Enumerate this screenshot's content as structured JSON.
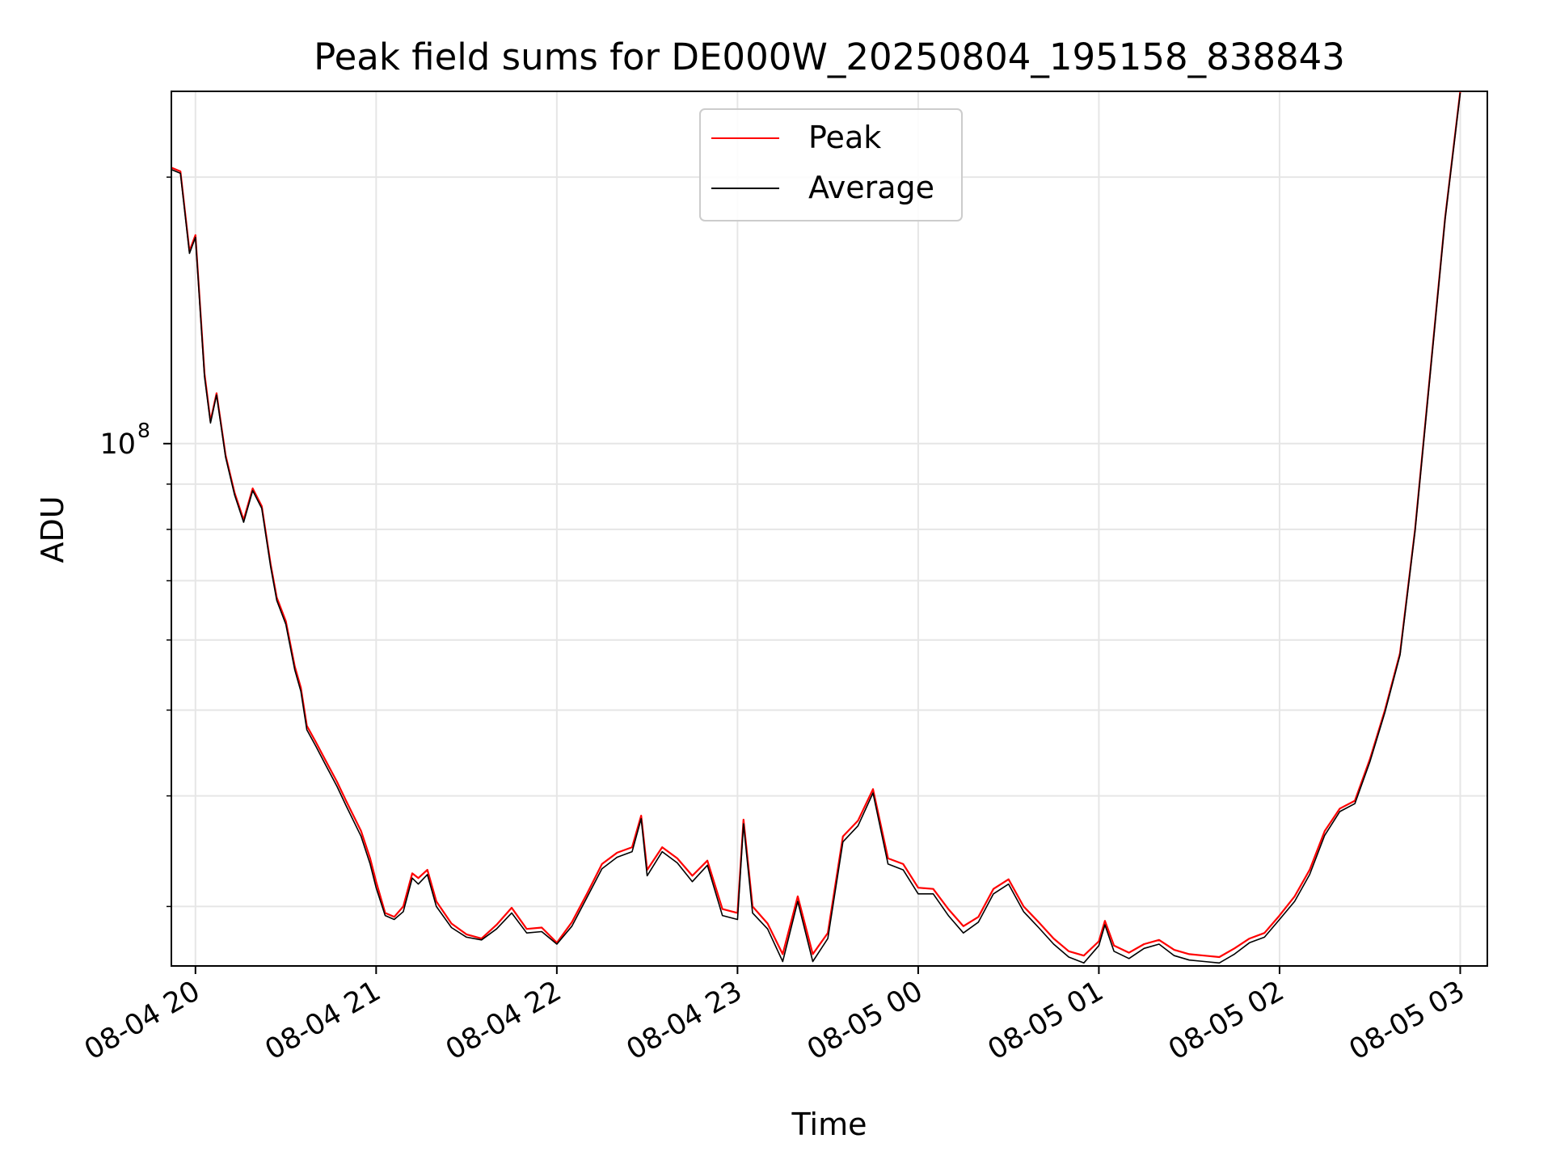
{
  "chart_data": {
    "type": "line",
    "title": "Peak field sums for DE000W_20250804_195158_838843",
    "xlabel": "Time",
    "ylabel": "ADU",
    "y_scale": "log",
    "grid": "on (major and minor)",
    "legend_position": "upper center",
    "x_tick_labels": [
      "08-04 20",
      "08-04 21",
      "08-04 22",
      "08-04 23",
      "08-05 00",
      "08-05 01",
      "08-05 02",
      "08-05 03"
    ],
    "x_tick_dates": [
      "2025-08-04T20:00",
      "2025-08-04T21:00",
      "2025-08-04T22:00",
      "2025-08-04T23:00",
      "2025-08-05T00:00",
      "2025-08-05T01:00",
      "2025-08-05T02:00",
      "2025-08-05T03:00"
    ],
    "xlim": [
      "2025-08-04T19:52",
      "2025-08-05T03:09"
    ],
    "y_major_ticks": [
      {
        "value": 100000000,
        "base": "10",
        "exponent": "8"
      }
    ],
    "y_minor_ticks": [
      30000000,
      40000000,
      50000000,
      60000000,
      70000000,
      80000000,
      90000000,
      200000000
    ],
    "ylim": [
      25700000,
      250000000
    ],
    "series": [
      {
        "name": "Peak",
        "color": "#ff0000",
        "points": [
          [
            "2025-08-04T19:52",
            205000000
          ],
          [
            "2025-08-04T19:55",
            203000000
          ],
          [
            "2025-08-04T19:58",
            165000000
          ],
          [
            "2025-08-04T20:00",
            172000000
          ],
          [
            "2025-08-04T20:03",
            120000000
          ],
          [
            "2025-08-04T20:05",
            106000000
          ],
          [
            "2025-08-04T20:07",
            114000000
          ],
          [
            "2025-08-04T20:10",
            97000000
          ],
          [
            "2025-08-04T20:13",
            88000000
          ],
          [
            "2025-08-04T20:16",
            82000000
          ],
          [
            "2025-08-04T20:19",
            89000000
          ],
          [
            "2025-08-04T20:22",
            85000000
          ],
          [
            "2025-08-04T20:25",
            73000000
          ],
          [
            "2025-08-04T20:27",
            67000000
          ],
          [
            "2025-08-04T20:30",
            63000000
          ],
          [
            "2025-08-04T20:33",
            56000000
          ],
          [
            "2025-08-04T20:35",
            53000000
          ],
          [
            "2025-08-04T20:37",
            48000000
          ],
          [
            "2025-08-04T20:40",
            46000000
          ],
          [
            "2025-08-04T20:43",
            44000000
          ],
          [
            "2025-08-04T20:47",
            41500000
          ],
          [
            "2025-08-04T20:50",
            39500000
          ],
          [
            "2025-08-04T20:55",
            36500000
          ],
          [
            "2025-08-04T20:58",
            34000000
          ],
          [
            "2025-08-04T21:00",
            32000000
          ],
          [
            "2025-08-04T21:03",
            29500000
          ],
          [
            "2025-08-04T21:06",
            29200000
          ],
          [
            "2025-08-04T21:09",
            30000000
          ],
          [
            "2025-08-04T21:12",
            32700000
          ],
          [
            "2025-08-04T21:14",
            32300000
          ],
          [
            "2025-08-04T21:17",
            33000000
          ],
          [
            "2025-08-04T21:20",
            30400000
          ],
          [
            "2025-08-04T21:25",
            28700000
          ],
          [
            "2025-08-04T21:30",
            27900000
          ],
          [
            "2025-08-04T21:35",
            27600000
          ],
          [
            "2025-08-04T21:40",
            28600000
          ],
          [
            "2025-08-04T21:45",
            29900000
          ],
          [
            "2025-08-04T21:50",
            28300000
          ],
          [
            "2025-08-04T21:55",
            28400000
          ],
          [
            "2025-08-04T22:00",
            27300000
          ],
          [
            "2025-08-04T22:05",
            28800000
          ],
          [
            "2025-08-04T22:10",
            31000000
          ],
          [
            "2025-08-04T22:15",
            33500000
          ],
          [
            "2025-08-04T22:20",
            34500000
          ],
          [
            "2025-08-04T22:25",
            35000000
          ],
          [
            "2025-08-04T22:28",
            38000000
          ],
          [
            "2025-08-04T22:30",
            33000000
          ],
          [
            "2025-08-04T22:35",
            35000000
          ],
          [
            "2025-08-04T22:40",
            34000000
          ],
          [
            "2025-08-04T22:45",
            32500000
          ],
          [
            "2025-08-04T22:50",
            33800000
          ],
          [
            "2025-08-04T22:55",
            29800000
          ],
          [
            "2025-08-04T23:00",
            29500000
          ],
          [
            "2025-08-04T23:02",
            37600000
          ],
          [
            "2025-08-04T23:05",
            30000000
          ],
          [
            "2025-08-04T23:10",
            28700000
          ],
          [
            "2025-08-04T23:15",
            26500000
          ],
          [
            "2025-08-04T23:20",
            30800000
          ],
          [
            "2025-08-04T23:25",
            26500000
          ],
          [
            "2025-08-04T23:30",
            28000000
          ],
          [
            "2025-08-04T23:35",
            36000000
          ],
          [
            "2025-08-04T23:40",
            37500000
          ],
          [
            "2025-08-04T23:45",
            40700000
          ],
          [
            "2025-08-04T23:50",
            34000000
          ],
          [
            "2025-08-04T23:55",
            33500000
          ],
          [
            "2025-08-05T00:00",
            31500000
          ],
          [
            "2025-08-05T00:05",
            31400000
          ],
          [
            "2025-08-05T00:10",
            29800000
          ],
          [
            "2025-08-05T00:15",
            28500000
          ],
          [
            "2025-08-05T00:20",
            29200000
          ],
          [
            "2025-08-05T00:25",
            31400000
          ],
          [
            "2025-08-05T00:30",
            32200000
          ],
          [
            "2025-08-05T00:35",
            30000000
          ],
          [
            "2025-08-05T00:40",
            28800000
          ],
          [
            "2025-08-05T00:45",
            27600000
          ],
          [
            "2025-08-05T00:50",
            26700000
          ],
          [
            "2025-08-05T00:55",
            26400000
          ],
          [
            "2025-08-05T01:00",
            27400000
          ],
          [
            "2025-08-05T01:02",
            28900000
          ],
          [
            "2025-08-05T01:05",
            27100000
          ],
          [
            "2025-08-05T01:10",
            26600000
          ],
          [
            "2025-08-05T01:15",
            27200000
          ],
          [
            "2025-08-05T01:20",
            27500000
          ],
          [
            "2025-08-05T01:25",
            26800000
          ],
          [
            "2025-08-05T01:30",
            26500000
          ],
          [
            "2025-08-05T01:35",
            26400000
          ],
          [
            "2025-08-05T01:40",
            26300000
          ],
          [
            "2025-08-05T01:45",
            26900000
          ],
          [
            "2025-08-05T01:50",
            27600000
          ],
          [
            "2025-08-05T01:55",
            28000000
          ],
          [
            "2025-08-05T02:00",
            29300000
          ],
          [
            "2025-08-05T02:05",
            30800000
          ],
          [
            "2025-08-05T02:10",
            33000000
          ],
          [
            "2025-08-05T02:15",
            36500000
          ],
          [
            "2025-08-05T02:20",
            38700000
          ],
          [
            "2025-08-05T02:25",
            39500000
          ],
          [
            "2025-08-05T02:30",
            44000000
          ],
          [
            "2025-08-05T02:35",
            50000000
          ],
          [
            "2025-08-05T02:40",
            58000000
          ],
          [
            "2025-08-05T02:45",
            80000000
          ],
          [
            "2025-08-05T02:50",
            120000000
          ],
          [
            "2025-08-05T02:55",
            180000000
          ],
          [
            "2025-08-05T03:00",
            250000000
          ]
        ]
      },
      {
        "name": "Average",
        "color": "#000000",
        "points": [
          [
            "2025-08-04T19:52",
            204000000
          ],
          [
            "2025-08-04T19:55",
            202000000
          ],
          [
            "2025-08-04T19:58",
            164000000
          ],
          [
            "2025-08-04T20:00",
            171000000
          ],
          [
            "2025-08-04T20:03",
            119000000
          ],
          [
            "2025-08-04T20:05",
            105500000
          ],
          [
            "2025-08-04T20:07",
            113500000
          ],
          [
            "2025-08-04T20:10",
            96500000
          ],
          [
            "2025-08-04T20:13",
            87500000
          ],
          [
            "2025-08-04T20:16",
            81500000
          ],
          [
            "2025-08-04T20:19",
            88500000
          ],
          [
            "2025-08-04T20:22",
            84500000
          ],
          [
            "2025-08-04T20:25",
            72500000
          ],
          [
            "2025-08-04T20:27",
            66500000
          ],
          [
            "2025-08-04T20:30",
            62500000
          ],
          [
            "2025-08-04T20:33",
            55500000
          ],
          [
            "2025-08-04T20:35",
            52500000
          ],
          [
            "2025-08-04T20:37",
            47500000
          ],
          [
            "2025-08-04T20:40",
            45500000
          ],
          [
            "2025-08-04T20:43",
            43500000
          ],
          [
            "2025-08-04T20:47",
            41000000
          ],
          [
            "2025-08-04T20:50",
            39000000
          ],
          [
            "2025-08-04T20:55",
            36000000
          ],
          [
            "2025-08-04T20:58",
            33500000
          ],
          [
            "2025-08-04T21:00",
            31500000
          ],
          [
            "2025-08-04T21:03",
            29300000
          ],
          [
            "2025-08-04T21:06",
            29000000
          ],
          [
            "2025-08-04T21:09",
            29600000
          ],
          [
            "2025-08-04T21:12",
            32300000
          ],
          [
            "2025-08-04T21:14",
            31800000
          ],
          [
            "2025-08-04T21:17",
            32600000
          ],
          [
            "2025-08-04T21:20",
            30000000
          ],
          [
            "2025-08-04T21:25",
            28400000
          ],
          [
            "2025-08-04T21:30",
            27700000
          ],
          [
            "2025-08-04T21:35",
            27500000
          ],
          [
            "2025-08-04T21:40",
            28300000
          ],
          [
            "2025-08-04T21:45",
            29500000
          ],
          [
            "2025-08-04T21:50",
            28000000
          ],
          [
            "2025-08-04T21:55",
            28100000
          ],
          [
            "2025-08-04T22:00",
            27200000
          ],
          [
            "2025-08-04T22:05",
            28500000
          ],
          [
            "2025-08-04T22:10",
            30700000
          ],
          [
            "2025-08-04T22:15",
            33100000
          ],
          [
            "2025-08-04T22:20",
            34100000
          ],
          [
            "2025-08-04T22:25",
            34600000
          ],
          [
            "2025-08-04T22:28",
            37700000
          ],
          [
            "2025-08-04T22:30",
            32500000
          ],
          [
            "2025-08-04T22:35",
            34600000
          ],
          [
            "2025-08-04T22:40",
            33600000
          ],
          [
            "2025-08-04T22:45",
            32000000
          ],
          [
            "2025-08-04T22:50",
            33400000
          ],
          [
            "2025-08-04T22:55",
            29300000
          ],
          [
            "2025-08-04T23:00",
            29000000
          ],
          [
            "2025-08-04T23:02",
            37200000
          ],
          [
            "2025-08-04T23:05",
            29500000
          ],
          [
            "2025-08-04T23:10",
            28300000
          ],
          [
            "2025-08-04T23:15",
            26000000
          ],
          [
            "2025-08-04T23:20",
            30400000
          ],
          [
            "2025-08-04T23:25",
            26000000
          ],
          [
            "2025-08-04T23:30",
            27600000
          ],
          [
            "2025-08-04T23:35",
            35500000
          ],
          [
            "2025-08-04T23:40",
            37000000
          ],
          [
            "2025-08-04T23:45",
            40300000
          ],
          [
            "2025-08-04T23:50",
            33500000
          ],
          [
            "2025-08-04T23:55",
            33000000
          ],
          [
            "2025-08-05T00:00",
            31000000
          ],
          [
            "2025-08-05T00:05",
            31000000
          ],
          [
            "2025-08-05T00:10",
            29300000
          ],
          [
            "2025-08-05T00:15",
            28000000
          ],
          [
            "2025-08-05T00:20",
            28800000
          ],
          [
            "2025-08-05T00:25",
            31000000
          ],
          [
            "2025-08-05T00:30",
            31800000
          ],
          [
            "2025-08-05T00:35",
            29600000
          ],
          [
            "2025-08-05T00:40",
            28400000
          ],
          [
            "2025-08-05T00:45",
            27200000
          ],
          [
            "2025-08-05T00:50",
            26300000
          ],
          [
            "2025-08-05T00:55",
            25900000
          ],
          [
            "2025-08-05T01:00",
            27100000
          ],
          [
            "2025-08-05T01:02",
            28600000
          ],
          [
            "2025-08-05T01:05",
            26700000
          ],
          [
            "2025-08-05T01:10",
            26200000
          ],
          [
            "2025-08-05T01:15",
            26900000
          ],
          [
            "2025-08-05T01:20",
            27200000
          ],
          [
            "2025-08-05T01:25",
            26400000
          ],
          [
            "2025-08-05T01:30",
            26100000
          ],
          [
            "2025-08-05T01:35",
            26000000
          ],
          [
            "2025-08-05T01:40",
            25900000
          ],
          [
            "2025-08-05T01:45",
            26500000
          ],
          [
            "2025-08-05T01:50",
            27300000
          ],
          [
            "2025-08-05T01:55",
            27700000
          ],
          [
            "2025-08-05T02:00",
            29000000
          ],
          [
            "2025-08-05T02:05",
            30400000
          ],
          [
            "2025-08-05T02:10",
            32600000
          ],
          [
            "2025-08-05T02:15",
            36100000
          ],
          [
            "2025-08-05T02:20",
            38400000
          ],
          [
            "2025-08-05T02:25",
            39200000
          ],
          [
            "2025-08-05T02:30",
            43700000
          ],
          [
            "2025-08-05T02:35",
            49700000
          ],
          [
            "2025-08-05T02:40",
            57700000
          ],
          [
            "2025-08-05T02:45",
            79700000
          ],
          [
            "2025-08-05T02:50",
            119500000
          ],
          [
            "2025-08-05T02:55",
            179500000
          ],
          [
            "2025-08-05T03:00",
            249000000
          ]
        ]
      }
    ]
  }
}
